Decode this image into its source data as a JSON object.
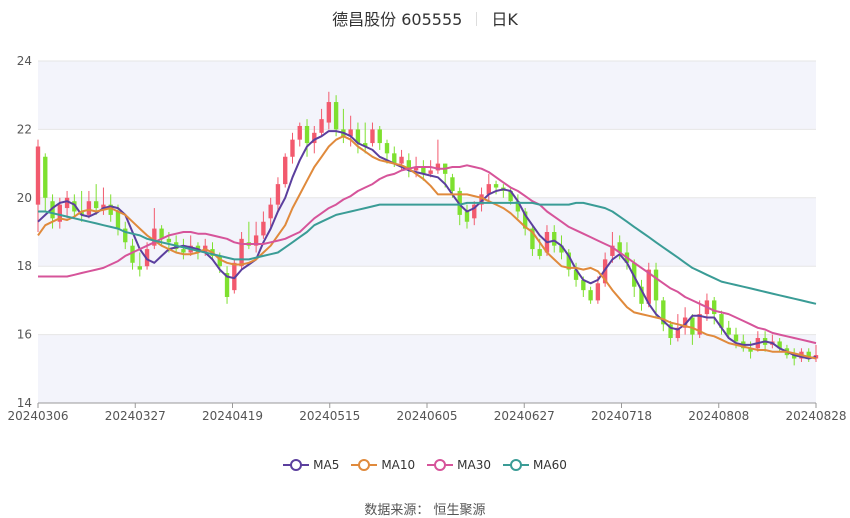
{
  "title": {
    "name": "德昌股份 605555",
    "period": "日K"
  },
  "source": "数据来源： 恒生聚源",
  "chart_data": {
    "type": "candlestick",
    "ylim": [
      14,
      24
    ],
    "yticks": [
      "14",
      "16",
      "18",
      "20",
      "22",
      "24"
    ],
    "xticks": [
      "20240306",
      "20240327",
      "20240419",
      "20240515",
      "20240605",
      "20240627",
      "20240718",
      "20240808",
      "20240828"
    ],
    "colors": {
      "up": "#f25a6e",
      "down": "#7ee02f",
      "band": "#f3f4fb",
      "grid": "#e6e6e6"
    },
    "candles": [
      [
        19.8,
        21.5,
        21.7,
        19.0
      ],
      [
        21.2,
        20.0,
        21.3,
        19.6
      ],
      [
        19.9,
        19.4,
        20.1,
        19.1
      ],
      [
        19.3,
        19.8,
        20.0,
        19.1
      ],
      [
        19.7,
        20.0,
        20.2,
        19.4
      ],
      [
        19.9,
        19.6,
        20.1,
        19.4
      ],
      [
        19.6,
        19.5,
        20.2,
        19.3
      ],
      [
        19.5,
        19.9,
        20.2,
        19.4
      ],
      [
        19.9,
        19.7,
        20.4,
        19.5
      ],
      [
        19.7,
        19.8,
        20.3,
        19.5
      ],
      [
        19.8,
        19.5,
        20.1,
        19.3
      ],
      [
        19.6,
        19.1,
        19.8,
        18.9
      ],
      [
        19.1,
        18.7,
        19.3,
        18.5
      ],
      [
        18.6,
        18.1,
        18.8,
        17.9
      ],
      [
        18.0,
        17.9,
        18.4,
        17.7
      ],
      [
        18.0,
        18.5,
        18.7,
        17.9
      ],
      [
        18.6,
        19.1,
        19.7,
        18.5
      ],
      [
        19.1,
        18.8,
        19.2,
        18.6
      ],
      [
        18.8,
        18.7,
        19.0,
        18.4
      ],
      [
        18.7,
        18.5,
        18.9,
        18.4
      ],
      [
        18.5,
        18.4,
        18.8,
        18.2
      ],
      [
        18.4,
        18.6,
        18.9,
        18.3
      ],
      [
        18.6,
        18.4,
        18.7,
        18.2
      ],
      [
        18.4,
        18.6,
        18.8,
        18.3
      ],
      [
        18.5,
        18.3,
        18.7,
        18.2
      ],
      [
        18.3,
        18.0,
        18.4,
        17.8
      ],
      [
        17.8,
        17.1,
        18.0,
        16.9
      ],
      [
        17.3,
        18.1,
        18.2,
        17.2
      ],
      [
        18.0,
        18.8,
        19.0,
        17.9
      ],
      [
        18.7,
        18.6,
        19.3,
        18.5
      ],
      [
        18.6,
        18.9,
        19.3,
        18.4
      ],
      [
        18.9,
        19.3,
        19.6,
        18.8
      ],
      [
        19.4,
        19.8,
        20.0,
        19.1
      ],
      [
        19.8,
        20.4,
        20.6,
        19.6
      ],
      [
        20.4,
        21.2,
        21.3,
        20.3
      ],
      [
        21.2,
        21.7,
        21.9,
        21.0
      ],
      [
        21.7,
        22.1,
        22.2,
        21.5
      ],
      [
        22.1,
        21.6,
        22.3,
        21.2
      ],
      [
        21.6,
        21.9,
        22.1,
        21.3
      ],
      [
        21.9,
        22.3,
        22.6,
        21.8
      ],
      [
        22.2,
        22.8,
        23.1,
        22.0
      ],
      [
        22.8,
        22.0,
        23.0,
        21.8
      ],
      [
        22.0,
        21.8,
        22.6,
        21.6
      ],
      [
        21.8,
        22.0,
        22.4,
        21.5
      ],
      [
        22.0,
        21.6,
        22.2,
        21.3
      ],
      [
        21.6,
        21.5,
        22.2,
        21.3
      ],
      [
        21.6,
        22.0,
        22.2,
        21.5
      ],
      [
        22.0,
        21.6,
        22.1,
        21.4
      ],
      [
        21.6,
        21.3,
        21.7,
        21.0
      ],
      [
        21.3,
        21.0,
        21.5,
        20.9
      ],
      [
        21.0,
        21.2,
        21.4,
        20.8
      ],
      [
        21.1,
        20.8,
        21.3,
        20.6
      ],
      [
        20.8,
        20.9,
        21.2,
        20.6
      ],
      [
        20.9,
        20.7,
        21.1,
        20.5
      ],
      [
        20.7,
        20.8,
        21.1,
        20.6
      ],
      [
        20.8,
        21.0,
        21.7,
        20.7
      ],
      [
        21.0,
        20.7,
        21.0,
        20.3
      ],
      [
        20.6,
        20.2,
        20.7,
        20.0
      ],
      [
        20.2,
        19.5,
        20.3,
        19.2
      ],
      [
        19.6,
        19.3,
        19.8,
        19.1
      ],
      [
        19.4,
        19.8,
        19.9,
        19.2
      ],
      [
        19.8,
        20.1,
        20.3,
        19.6
      ],
      [
        20.1,
        20.4,
        20.7,
        19.9
      ],
      [
        20.4,
        20.3,
        20.5,
        20.1
      ],
      [
        20.3,
        20.2,
        20.4,
        20.0
      ],
      [
        20.2,
        19.9,
        20.3,
        19.8
      ],
      [
        19.9,
        19.6,
        20.1,
        19.4
      ],
      [
        19.6,
        19.1,
        19.7,
        18.9
      ],
      [
        19.1,
        18.5,
        19.2,
        18.3
      ],
      [
        18.5,
        18.3,
        18.8,
        18.2
      ],
      [
        18.4,
        19.0,
        19.2,
        18.3
      ],
      [
        19.0,
        18.6,
        19.2,
        18.4
      ],
      [
        18.6,
        18.4,
        18.9,
        18.2
      ],
      [
        18.4,
        17.9,
        18.5,
        17.7
      ],
      [
        17.9,
        17.6,
        18.1,
        17.4
      ],
      [
        17.6,
        17.3,
        17.7,
        17.1
      ],
      [
        17.3,
        17.0,
        17.4,
        16.9
      ],
      [
        17.0,
        17.5,
        17.7,
        16.9
      ],
      [
        17.5,
        18.2,
        18.4,
        17.4
      ],
      [
        18.3,
        18.6,
        19.0,
        18.1
      ],
      [
        18.7,
        18.4,
        18.9,
        18.2
      ],
      [
        18.4,
        18.1,
        18.7,
        17.9
      ],
      [
        18.1,
        17.4,
        18.2,
        17.1
      ],
      [
        17.4,
        16.9,
        17.6,
        16.7
      ],
      [
        16.9,
        17.9,
        18.1,
        16.8
      ],
      [
        17.9,
        17.0,
        18.1,
        16.5
      ],
      [
        17.0,
        16.3,
        17.1,
        16.1
      ],
      [
        16.3,
        15.9,
        16.4,
        15.7
      ],
      [
        15.9,
        16.2,
        16.6,
        15.8
      ],
      [
        16.2,
        16.5,
        16.8,
        16.0
      ],
      [
        16.5,
        16.0,
        16.6,
        15.7
      ],
      [
        16.0,
        16.6,
        17.0,
        15.9
      ],
      [
        16.6,
        17.0,
        17.2,
        16.4
      ],
      [
        17.0,
        16.6,
        17.1,
        16.3
      ],
      [
        16.6,
        16.2,
        16.7,
        16.0
      ],
      [
        16.2,
        16.0,
        16.4,
        15.9
      ],
      [
        16.0,
        15.8,
        16.2,
        15.6
      ],
      [
        15.8,
        15.6,
        16.0,
        15.5
      ],
      [
        15.6,
        15.5,
        15.8,
        15.3
      ],
      [
        15.6,
        15.9,
        16.1,
        15.5
      ],
      [
        15.9,
        15.7,
        16.1,
        15.5
      ],
      [
        15.7,
        15.8,
        16.0,
        15.6
      ],
      [
        15.8,
        15.6,
        15.9,
        15.5
      ],
      [
        15.6,
        15.4,
        15.7,
        15.3
      ],
      [
        15.4,
        15.3,
        15.6,
        15.1
      ],
      [
        15.3,
        15.5,
        15.6,
        15.2
      ],
      [
        15.5,
        15.3,
        15.6,
        15.2
      ],
      [
        15.3,
        15.4,
        15.7,
        15.2
      ]
    ],
    "series": [
      {
        "name": "MA5",
        "color": "#5b3f9e",
        "values": [
          19.3,
          19.5,
          19.7,
          19.85,
          19.9,
          19.8,
          19.5,
          19.45,
          19.55,
          19.7,
          19.75,
          19.7,
          19.5,
          19.0,
          18.5,
          18.2,
          18.1,
          18.3,
          18.5,
          18.55,
          18.6,
          18.55,
          18.5,
          18.4,
          18.2,
          17.9,
          17.7,
          17.65,
          17.9,
          18.05,
          18.2,
          18.7,
          19.1,
          19.6,
          20.0,
          20.6,
          21.1,
          21.5,
          21.7,
          21.8,
          21.95,
          21.95,
          21.9,
          21.8,
          21.6,
          21.5,
          21.4,
          21.2,
          21.1,
          21.0,
          20.9,
          20.8,
          20.75,
          20.7,
          20.65,
          20.6,
          20.4,
          20.1,
          19.8,
          19.6,
          19.7,
          19.9,
          20.1,
          20.2,
          20.25,
          20.2,
          19.9,
          19.5,
          19.2,
          18.9,
          18.7,
          18.75,
          18.6,
          18.3,
          17.9,
          17.6,
          17.5,
          17.6,
          17.9,
          18.2,
          18.35,
          18.1,
          17.7,
          17.3,
          16.9,
          16.6,
          16.4,
          16.2,
          16.15,
          16.3,
          16.55,
          16.55,
          16.5,
          16.5,
          16.2,
          15.9,
          15.75,
          15.7,
          15.7,
          15.75,
          15.8,
          15.75,
          15.6,
          15.5,
          15.4,
          15.35,
          15.3,
          15.35
        ]
      },
      {
        "name": "MA10",
        "color": "#e08a3c",
        "values": [
          18.9,
          19.2,
          19.3,
          19.4,
          19.35,
          19.45,
          19.6,
          19.65,
          19.6,
          19.65,
          19.7,
          19.6,
          19.5,
          19.3,
          19.1,
          18.9,
          18.75,
          18.6,
          18.5,
          18.4,
          18.35,
          18.35,
          18.4,
          18.5,
          18.4,
          18.2,
          18.1,
          18.05,
          18.05,
          18.1,
          18.2,
          18.4,
          18.6,
          18.9,
          19.2,
          19.7,
          20.1,
          20.5,
          20.9,
          21.2,
          21.5,
          21.7,
          21.8,
          21.7,
          21.5,
          21.35,
          21.2,
          21.1,
          21.05,
          21.0,
          20.95,
          20.85,
          20.7,
          20.55,
          20.35,
          20.1,
          20.1,
          20.1,
          20.1,
          20.1,
          20.05,
          20.0,
          19.9,
          19.8,
          19.7,
          19.55,
          19.35,
          19.15,
          19.0,
          18.7,
          18.4,
          18.2,
          18.0,
          17.95,
          17.95,
          17.9,
          17.95,
          17.85,
          17.6,
          17.3,
          17.05,
          16.8,
          16.65,
          16.6,
          16.55,
          16.5,
          16.45,
          16.35,
          16.3,
          16.25,
          16.2,
          16.1,
          16.0,
          15.95,
          15.85,
          15.75,
          15.7,
          15.65,
          15.6,
          15.55,
          15.55,
          15.5,
          15.5,
          15.5,
          15.45,
          15.4,
          15.35,
          15.3
        ]
      },
      {
        "name": "MA30",
        "color": "#d6549a",
        "values": [
          17.7,
          17.7,
          17.7,
          17.7,
          17.7,
          17.75,
          17.8,
          17.85,
          17.9,
          17.95,
          18.05,
          18.15,
          18.3,
          18.4,
          18.5,
          18.6,
          18.7,
          18.8,
          18.9,
          18.95,
          19.0,
          19.0,
          18.95,
          18.95,
          18.9,
          18.85,
          18.8,
          18.7,
          18.65,
          18.65,
          18.65,
          18.65,
          18.7,
          18.75,
          18.8,
          18.9,
          19.0,
          19.2,
          19.4,
          19.55,
          19.7,
          19.8,
          19.95,
          20.05,
          20.2,
          20.3,
          20.4,
          20.55,
          20.65,
          20.7,
          20.8,
          20.85,
          20.9,
          20.9,
          20.9,
          20.85,
          20.85,
          20.9,
          20.9,
          20.95,
          20.9,
          20.85,
          20.75,
          20.6,
          20.45,
          20.3,
          20.2,
          20.05,
          19.9,
          19.8,
          19.6,
          19.45,
          19.3,
          19.15,
          19.05,
          18.95,
          18.85,
          18.75,
          18.65,
          18.55,
          18.4,
          18.25,
          18.1,
          17.95,
          17.8,
          17.65,
          17.5,
          17.35,
          17.25,
          17.1,
          17.0,
          16.9,
          16.8,
          16.7,
          16.65,
          16.6,
          16.5,
          16.4,
          16.3,
          16.2,
          16.15,
          16.05,
          16.0,
          15.95,
          15.9,
          15.85,
          15.8,
          15.75
        ]
      },
      {
        "name": "MA60",
        "color": "#3a9c96",
        "values": [
          19.6,
          19.6,
          19.55,
          19.5,
          19.45,
          19.4,
          19.35,
          19.3,
          19.25,
          19.2,
          19.15,
          19.1,
          19.0,
          18.95,
          18.9,
          18.8,
          18.75,
          18.7,
          18.65,
          18.6,
          18.55,
          18.5,
          18.45,
          18.4,
          18.35,
          18.3,
          18.25,
          18.2,
          18.2,
          18.2,
          18.25,
          18.3,
          18.35,
          18.4,
          18.55,
          18.7,
          18.85,
          19.0,
          19.2,
          19.3,
          19.4,
          19.5,
          19.55,
          19.6,
          19.65,
          19.7,
          19.75,
          19.8,
          19.8,
          19.8,
          19.8,
          19.8,
          19.8,
          19.8,
          19.8,
          19.8,
          19.8,
          19.8,
          19.8,
          19.85,
          19.85,
          19.85,
          19.85,
          19.85,
          19.85,
          19.85,
          19.85,
          19.85,
          19.85,
          19.8,
          19.8,
          19.8,
          19.8,
          19.8,
          19.85,
          19.85,
          19.8,
          19.75,
          19.7,
          19.6,
          19.45,
          19.3,
          19.15,
          19.0,
          18.85,
          18.7,
          18.55,
          18.4,
          18.25,
          18.1,
          17.95,
          17.85,
          17.75,
          17.65,
          17.55,
          17.5,
          17.45,
          17.4,
          17.35,
          17.3,
          17.25,
          17.2,
          17.15,
          17.1,
          17.05,
          17.0,
          16.95,
          16.9
        ]
      }
    ]
  }
}
